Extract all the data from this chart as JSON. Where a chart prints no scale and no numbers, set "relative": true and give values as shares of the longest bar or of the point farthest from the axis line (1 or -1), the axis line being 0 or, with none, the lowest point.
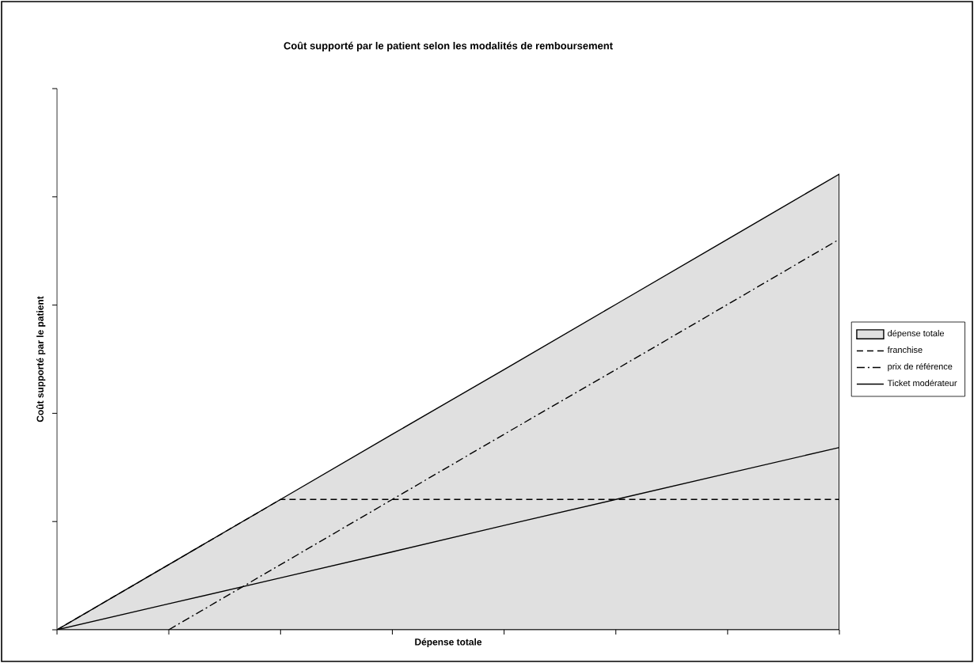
{
  "chart_data": {
    "type": "line",
    "title": "Coût supporté par le patient selon les modalités de remboursement",
    "xlabel": "Dépense totale",
    "ylabel": "Coût supporté par le patient",
    "relative": true,
    "legend": "right",
    "marker": "none",
    "categories": [
      null,
      null,
      null,
      null,
      null,
      null,
      null,
      null
    ],
    "series": [
      {
        "name": "dépense totale",
        "type": "area",
        "color": "#e0e0e0",
        "values": [
          0,
          0.143,
          0.286,
          0.429,
          0.571,
          0.714,
          0.857,
          1
        ]
      },
      {
        "name": "franchise",
        "color": "#000000",
        "line_style": "dashed",
        "values": [
          0,
          0.143,
          0.286,
          0.286,
          0.286,
          0.286,
          0.286,
          0.286
        ]
      },
      {
        "name": "prix de référence",
        "color": "#000000",
        "line_style": "dashdot",
        "values": [
          null,
          0,
          0.143,
          0.286,
          0.429,
          0.571,
          0.714,
          0.857
        ]
      },
      {
        "name": "Ticket modérateur",
        "color": "#000000",
        "line_style": "solid",
        "values": [
          0,
          0.057,
          0.114,
          0.171,
          0.229,
          0.286,
          0.343,
          0.4
        ]
      }
    ]
  }
}
